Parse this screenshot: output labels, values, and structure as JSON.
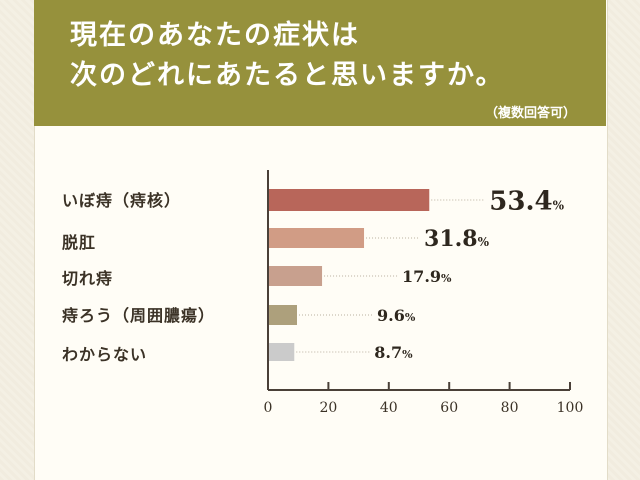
{
  "title": {
    "line1": "現在のあなたの症状は",
    "line2": "次のどれにあたると思いますか。",
    "note": "（複数回答可）"
  },
  "colors": {
    "header_bg": "#96913c",
    "axis": "#4a4038"
  },
  "chart_data": {
    "type": "bar",
    "orientation": "horizontal",
    "categories": [
      "いぼ痔（痔核）",
      "脱肛",
      "切れ痔",
      "痔ろう（周囲膿瘍）",
      "わからない"
    ],
    "values": [
      53.4,
      31.8,
      17.9,
      9.6,
      8.7
    ],
    "value_labels": [
      "53.4",
      "31.8",
      "17.9",
      "9.6",
      "8.7"
    ],
    "unit": "%",
    "bar_colors": [
      "#b8665a",
      "#d19c85",
      "#c8a08e",
      "#ada07c",
      "#cbcbcb"
    ],
    "xlim": [
      0,
      100
    ],
    "xticks": [
      0,
      20,
      40,
      60,
      80,
      100
    ],
    "tick_labels": [
      "0",
      "20",
      "40",
      "60",
      "80",
      "100"
    ],
    "grid": false,
    "legend": "none"
  }
}
